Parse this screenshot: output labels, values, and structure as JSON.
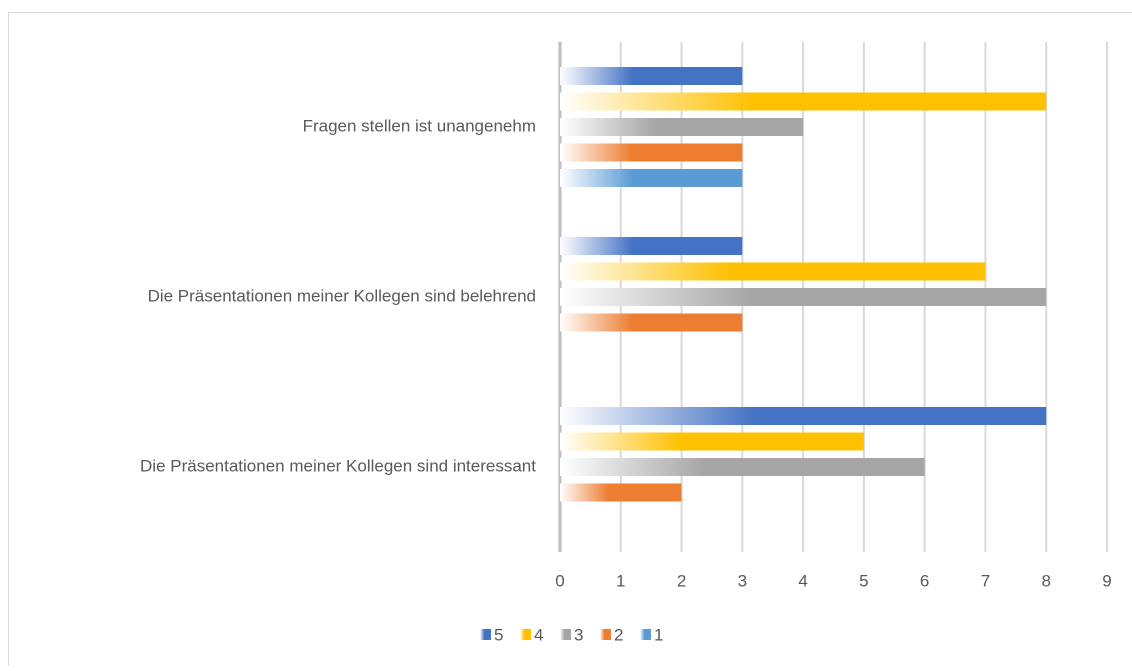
{
  "chart_data": {
    "type": "bar",
    "orientation": "horizontal",
    "categories": [
      "Fragen stellen ist unangenehm",
      "Die Präsentationen meiner Kollegen sind belehrend",
      "Die Präsentationen meiner Kollegen sind interessant"
    ],
    "series": [
      {
        "name": "5",
        "color": "#4472c4",
        "values": [
          3,
          3,
          8
        ]
      },
      {
        "name": "4",
        "color": "#ffc000",
        "values": [
          8,
          7,
          5
        ]
      },
      {
        "name": "3",
        "color": "#a5a5a5",
        "values": [
          4,
          8,
          6
        ]
      },
      {
        "name": "2",
        "color": "#ed7d31",
        "values": [
          3,
          3,
          2
        ]
      },
      {
        "name": "1",
        "color": "#5b9bd5",
        "values": [
          3,
          0,
          0
        ]
      }
    ],
    "xlim": [
      0,
      9
    ],
    "xticks": [
      0,
      1,
      2,
      3,
      4,
      5,
      6,
      7,
      8,
      9
    ],
    "grid": true,
    "legend": "bottom"
  }
}
